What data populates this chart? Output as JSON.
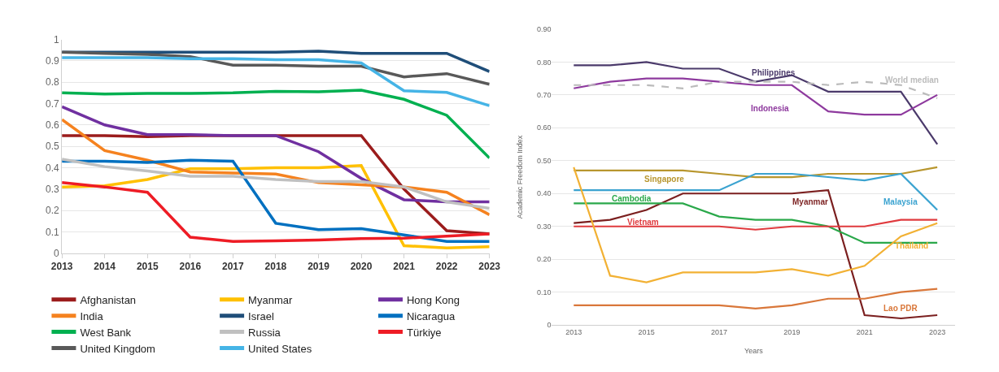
{
  "chart_data": [
    {
      "type": "line",
      "x": [
        2013,
        2014,
        2015,
        2016,
        2017,
        2018,
        2019,
        2020,
        2021,
        2022,
        2023
      ],
      "xlim": [
        2013,
        2023
      ],
      "xticks": [
        2013,
        2014,
        2015,
        2016,
        2017,
        2018,
        2019,
        2020,
        2021,
        2022,
        2023
      ],
      "ylim": [
        0,
        1
      ],
      "yticks": [
        0,
        0.1,
        0.2,
        0.3,
        0.4,
        0.5,
        0.6,
        0.7,
        0.8,
        0.9,
        1
      ],
      "grid": "y",
      "legend": "bottom",
      "marker": "none",
      "series": [
        {
          "name": "Afghanistan",
          "color": "#9b1c1c",
          "values": [
            0.55,
            0.55,
            0.545,
            0.55,
            0.55,
            0.55,
            0.55,
            0.55,
            0.3,
            0.105,
            0.09
          ]
        },
        {
          "name": "Myanmar",
          "color": "#ffc000",
          "values": [
            0.31,
            0.315,
            0.345,
            0.395,
            0.395,
            0.4,
            0.4,
            0.41,
            0.035,
            0.025,
            0.03
          ]
        },
        {
          "name": "Hong Kong",
          "color": "#7030a0",
          "values": [
            0.685,
            0.6,
            0.555,
            0.555,
            0.55,
            0.55,
            0.475,
            0.35,
            0.25,
            0.24,
            0.24
          ]
        },
        {
          "name": "India",
          "color": "#f5821f",
          "values": [
            0.625,
            0.48,
            0.435,
            0.38,
            0.375,
            0.37,
            0.33,
            0.32,
            0.31,
            0.285,
            0.18
          ]
        },
        {
          "name": "Israel",
          "color": "#1f4e79",
          "values": [
            0.94,
            0.94,
            0.94,
            0.94,
            0.94,
            0.94,
            0.945,
            0.935,
            0.935,
            0.935,
            0.85
          ]
        },
        {
          "name": "Nicaragua",
          "color": "#0070c0",
          "values": [
            0.43,
            0.43,
            0.425,
            0.435,
            0.43,
            0.14,
            0.11,
            0.115,
            0.085,
            0.055,
            0.055
          ]
        },
        {
          "name": "West Bank",
          "color": "#00b050",
          "values": [
            0.75,
            0.745,
            0.748,
            0.748,
            0.75,
            0.757,
            0.755,
            0.763,
            0.72,
            0.645,
            0.445
          ]
        },
        {
          "name": "Russia",
          "color": "#c0c0c0",
          "values": [
            0.44,
            0.405,
            0.385,
            0.36,
            0.36,
            0.345,
            0.335,
            0.335,
            0.31,
            0.24,
            0.21
          ]
        },
        {
          "name": "Türkiye",
          "color": "#ee1c25",
          "values": [
            0.33,
            0.31,
            0.285,
            0.075,
            0.055,
            0.058,
            0.062,
            0.068,
            0.07,
            0.08,
            0.09
          ]
        },
        {
          "name": "United Kingdom",
          "color": "#595959",
          "values": [
            0.94,
            0.935,
            0.93,
            0.92,
            0.88,
            0.88,
            0.875,
            0.875,
            0.825,
            0.84,
            0.79
          ]
        },
        {
          "name": "United States",
          "color": "#45b4e6",
          "values": [
            0.915,
            0.915,
            0.915,
            0.91,
            0.91,
            0.905,
            0.905,
            0.89,
            0.76,
            0.752,
            0.69
          ]
        }
      ]
    },
    {
      "type": "line",
      "xlabel": "Years",
      "ylabel": "Academic Freedom Index",
      "x": [
        2013,
        2014,
        2015,
        2016,
        2017,
        2018,
        2019,
        2020,
        2021,
        2022,
        2023
      ],
      "xlim": [
        2012.4,
        2023.5
      ],
      "xticks": [
        2013,
        2015,
        2017,
        2019,
        2021,
        2023
      ],
      "ylim": [
        0,
        0.9
      ],
      "yticks": [
        0,
        {
          "value": 0.1,
          "label": "0.10"
        },
        {
          "value": 0.2,
          "label": "0.20"
        },
        {
          "value": 0.3,
          "label": "0.30"
        },
        {
          "value": 0.4,
          "label": "0.40"
        },
        {
          "value": 0.5,
          "label": "0.50"
        },
        {
          "value": 0.6,
          "label": "0.60"
        },
        {
          "value": 0.7,
          "label": "0.70"
        },
        {
          "value": 0.8,
          "label": "0.80"
        },
        {
          "value": 0.9,
          "label": "0.90"
        }
      ],
      "grid": "y",
      "legend": false,
      "marker": "none",
      "series": [
        {
          "name": "Philippines",
          "color": "#4b3a6b",
          "values": [
            0.79,
            0.79,
            0.8,
            0.78,
            0.78,
            0.74,
            0.76,
            0.71,
            0.71,
            0.71,
            0.55
          ]
        },
        {
          "name": "Indonesia",
          "color": "#8e3a9e",
          "values": [
            0.72,
            0.74,
            0.75,
            0.75,
            0.74,
            0.73,
            0.73,
            0.65,
            0.64,
            0.64,
            0.7
          ]
        },
        {
          "name": "World median",
          "color": "#bbbbbb",
          "line_style": "dashed",
          "values": [
            0.73,
            0.73,
            0.73,
            0.72,
            0.74,
            0.74,
            0.74,
            0.73,
            0.74,
            0.73,
            0.69
          ]
        },
        {
          "name": "Singapore",
          "color": "#b8962e",
          "values": [
            0.47,
            0.47,
            0.47,
            0.47,
            0.46,
            0.45,
            0.45,
            0.46,
            0.46,
            0.46,
            0.48
          ]
        },
        {
          "name": "Malaysia",
          "color": "#3ba3d0",
          "values": [
            0.41,
            0.41,
            0.41,
            0.41,
            0.41,
            0.46,
            0.46,
            0.45,
            0.44,
            0.46,
            0.35
          ]
        },
        {
          "name": "Myanmar",
          "color": "#7b1f1f",
          "values": [
            0.31,
            0.32,
            0.35,
            0.4,
            0.4,
            0.4,
            0.4,
            0.41,
            0.03,
            0.02,
            0.03
          ]
        },
        {
          "name": "Cambodia",
          "color": "#2aa84a",
          "values": [
            0.37,
            0.37,
            0.37,
            0.37,
            0.33,
            0.32,
            0.32,
            0.3,
            0.25,
            0.25,
            0.25
          ]
        },
        {
          "name": "Vietnam",
          "color": "#e03a3e",
          "values": [
            0.3,
            0.3,
            0.3,
            0.3,
            0.3,
            0.29,
            0.3,
            0.3,
            0.3,
            0.32,
            0.32
          ]
        },
        {
          "name": "Thailand",
          "color": "#f2b134",
          "values": [
            0.48,
            0.15,
            0.13,
            0.16,
            0.16,
            0.16,
            0.17,
            0.15,
            0.18,
            0.27,
            0.31
          ]
        },
        {
          "name": "Lao PDR",
          "color": "#d9773a",
          "values": [
            0.06,
            0.06,
            0.06,
            0.06,
            0.06,
            0.05,
            0.06,
            0.08,
            0.08,
            0.1,
            0.11
          ]
        }
      ]
    }
  ]
}
